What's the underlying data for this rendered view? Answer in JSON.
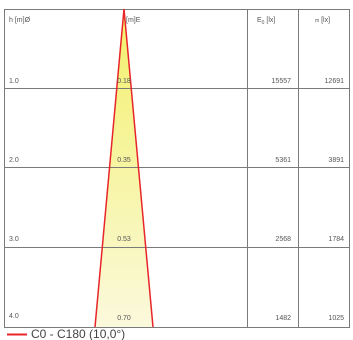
{
  "header": {
    "height_label": "h [m]",
    "diameter_label": "Ø",
    "diameter_label_right": "[m]",
    "e_label": "E",
    "e0_label": "E",
    "e0_sub": "0",
    "e0_unit": " [lx]",
    "em_sub": "m",
    "em_unit": " [lx]"
  },
  "rows": [
    {
      "h": "1.0",
      "d": "0.18",
      "e0": "15557",
      "em": "12691"
    },
    {
      "h": "2.0",
      "d": "0.35",
      "e0": "5361",
      "em": "3891"
    },
    {
      "h": "3.0",
      "d": "0.53",
      "e0": "2568",
      "em": "1784"
    },
    {
      "h": "4.0",
      "d": "0.70",
      "e0": "1482",
      "em": "1025"
    }
  ],
  "legend": {
    "label": "C0 - C180 (10,0°)"
  },
  "colors": {
    "beam_line": "#e8262a",
    "beam_fill_top": "#f3f06a",
    "beam_fill_bottom": "#fbf9dc",
    "grid": "#7a7a7a",
    "text": "#555555"
  }
}
